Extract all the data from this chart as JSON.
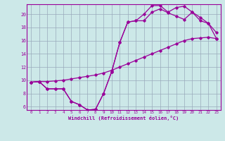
{
  "xlabel": "Windchill (Refroidissement éolien,°C)",
  "bg_color": "#cce8e8",
  "line_color": "#990099",
  "grid_color": "#99aabb",
  "xlim": [
    -0.5,
    23.5
  ],
  "ylim": [
    5.5,
    21.5
  ],
  "yticks": [
    6,
    8,
    10,
    12,
    14,
    16,
    18,
    20
  ],
  "xticks": [
    0,
    1,
    2,
    3,
    4,
    5,
    6,
    7,
    8,
    9,
    10,
    11,
    12,
    13,
    14,
    15,
    16,
    17,
    18,
    19,
    20,
    21,
    22,
    23
  ],
  "line1_x": [
    0,
    1,
    2,
    3,
    4,
    5,
    6,
    7,
    8,
    9,
    10,
    11,
    12,
    13,
    14,
    15,
    16,
    17,
    18,
    19,
    20,
    21,
    22,
    23
  ],
  "line1_y": [
    9.7,
    9.8,
    8.7,
    8.7,
    8.7,
    6.8,
    6.3,
    5.5,
    5.6,
    8.0,
    11.3,
    15.7,
    18.8,
    19.0,
    20.0,
    21.3,
    21.3,
    20.3,
    21.0,
    21.2,
    20.3,
    19.5,
    18.6,
    16.3
  ],
  "line2_x": [
    0,
    1,
    2,
    3,
    4,
    5,
    6,
    7,
    8,
    9,
    10,
    11,
    12,
    13,
    14,
    15,
    16,
    17,
    18,
    19,
    20,
    21,
    22,
    23
  ],
  "line2_y": [
    9.7,
    9.8,
    8.7,
    8.7,
    8.7,
    6.8,
    6.3,
    5.5,
    5.6,
    8.0,
    11.3,
    15.7,
    18.8,
    19.0,
    19.0,
    20.3,
    20.8,
    20.2,
    19.7,
    19.2,
    20.3,
    19.0,
    18.6,
    17.2
  ],
  "line3_x": [
    0,
    1,
    2,
    3,
    4,
    5,
    6,
    7,
    8,
    9,
    10,
    11,
    12,
    13,
    14,
    15,
    16,
    17,
    18,
    19,
    20,
    21,
    22,
    23
  ],
  "line3_y": [
    9.7,
    9.8,
    9.8,
    9.9,
    10.0,
    10.2,
    10.4,
    10.6,
    10.8,
    11.1,
    11.5,
    12.0,
    12.5,
    13.0,
    13.5,
    14.0,
    14.5,
    15.0,
    15.5,
    16.0,
    16.3,
    16.4,
    16.5,
    16.3
  ]
}
